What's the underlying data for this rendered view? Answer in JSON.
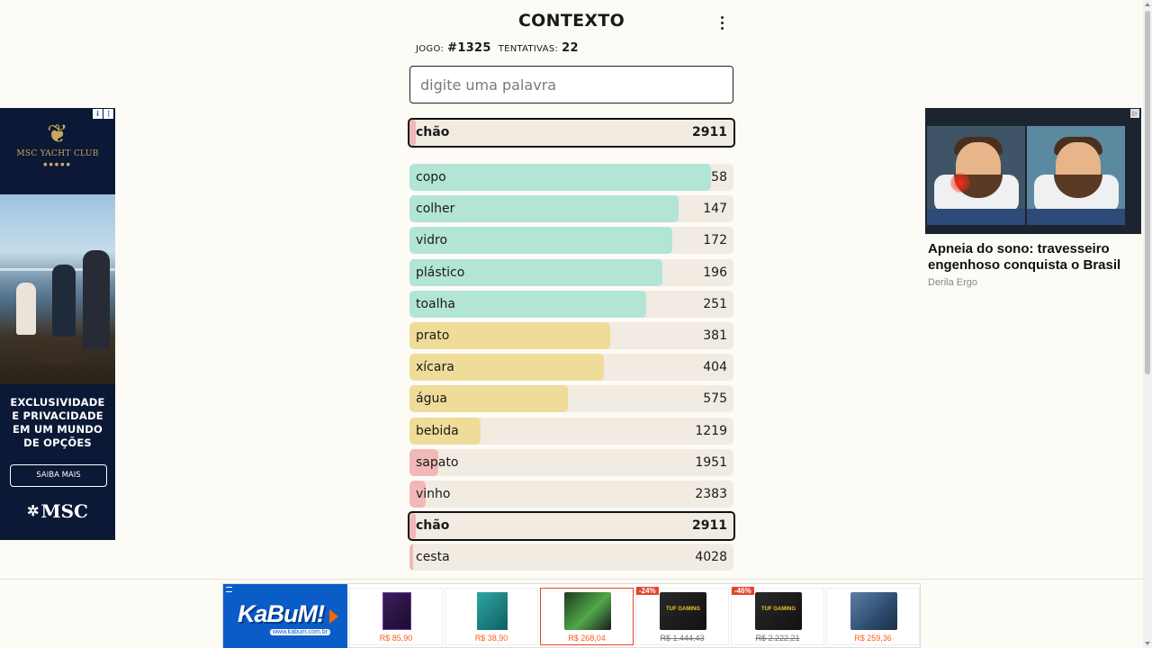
{
  "app": {
    "title": "CONTEXTO",
    "game_label": "JOGO:",
    "game_number": "#1325",
    "attempts_label": "TENTATIVAS:",
    "attempts_count": "22",
    "input_placeholder": "digite uma palavra"
  },
  "last_guess": {
    "word": "chão",
    "rank": "2911",
    "color": "red",
    "bar_fraction": 0.02
  },
  "guesses": [
    {
      "word": "copo",
      "rank": "58",
      "color": "green",
      "bar_fraction": 0.93
    },
    {
      "word": "colher",
      "rank": "147",
      "color": "green",
      "bar_fraction": 0.83
    },
    {
      "word": "vidro",
      "rank": "172",
      "color": "green",
      "bar_fraction": 0.81
    },
    {
      "word": "plástico",
      "rank": "196",
      "color": "green",
      "bar_fraction": 0.78
    },
    {
      "word": "toalha",
      "rank": "251",
      "color": "green",
      "bar_fraction": 0.73
    },
    {
      "word": "prato",
      "rank": "381",
      "color": "yellow",
      "bar_fraction": 0.62
    },
    {
      "word": "xícara",
      "rank": "404",
      "color": "yellow",
      "bar_fraction": 0.6
    },
    {
      "word": "água",
      "rank": "575",
      "color": "yellow",
      "bar_fraction": 0.49
    },
    {
      "word": "bebida",
      "rank": "1219",
      "color": "yellow",
      "bar_fraction": 0.22
    },
    {
      "word": "sapato",
      "rank": "1951",
      "color": "red",
      "bar_fraction": 0.09
    },
    {
      "word": "vinho",
      "rank": "2383",
      "color": "red",
      "bar_fraction": 0.05
    },
    {
      "word": "chão",
      "rank": "2911",
      "color": "red",
      "bar_fraction": 0.02,
      "highlight": true
    },
    {
      "word": "cesta",
      "rank": "4028",
      "color": "red",
      "bar_fraction": 0.01
    }
  ],
  "ad_left": {
    "brand": "MSC YACHT CLUB",
    "copy": [
      "EXCLUSIVIDADE",
      "E PRIVACIDADE",
      "EM UM MUNDO",
      "DE OPÇÕES"
    ],
    "cta": "SAIBA MAIS",
    "logo": "MSC"
  },
  "ad_right": {
    "headline": "Apneia do sono: travesseiro engenhoso conquista o Brasil",
    "source": "Derila Ergo"
  },
  "ad_bottom": {
    "brand": "KaBuM!",
    "site": "www.kabum.com.br",
    "products": [
      {
        "price": "R$ 85,90",
        "image": "box-purple"
      },
      {
        "price": "R$ 38,90",
        "image": "box-teal"
      },
      {
        "price": "R$ 268,04",
        "image": "monitor-green",
        "selected": true
      },
      {
        "price": "R$ 1.444,43",
        "badge": "-24%",
        "image": "monitor-tuf",
        "strike": true
      },
      {
        "price": "R$ 2.222,21",
        "badge": "-46%",
        "image": "monitor-tuf",
        "strike": true
      },
      {
        "price": "R$ 259,36",
        "image": "monitor-landscape"
      }
    ]
  }
}
